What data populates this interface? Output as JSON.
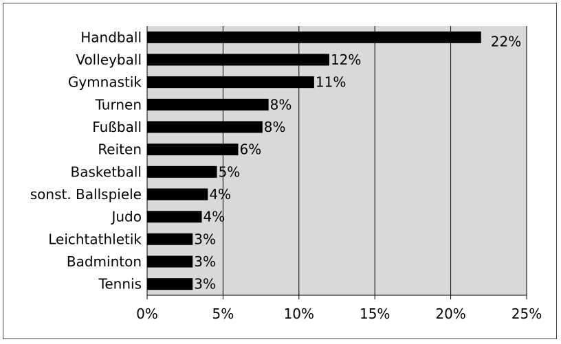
{
  "chart_data": {
    "type": "bar",
    "orientation": "horizontal",
    "categories": [
      "Handball",
      "Volleyball",
      "Gymnastik",
      "Turnen",
      "Fußball",
      "Reiten",
      "Basketball",
      "sonst. Ballspiele",
      "Judo",
      "Leichtathletik",
      "Badminton",
      "Tennis"
    ],
    "values": [
      22,
      12,
      11,
      8,
      7.6,
      6,
      4.6,
      4,
      3.6,
      3,
      3,
      3
    ],
    "data_labels": [
      "22%",
      "12%",
      "11%",
      "8%",
      "8%",
      "6%",
      "5%",
      "4%",
      "4%",
      "3%",
      "3%",
      "3%"
    ],
    "xlim": [
      0,
      25
    ],
    "xticks": [
      0,
      5,
      10,
      15,
      20,
      25
    ],
    "xtick_labels": [
      "0%",
      "5%",
      "10%",
      "15%",
      "20%",
      "25%"
    ],
    "grid": "vertical",
    "title": "",
    "xlabel": "",
    "ylabel": "",
    "colors": {
      "bar": "#000000",
      "plot_background": "#d9d9d9",
      "gridline": "#000000"
    }
  }
}
